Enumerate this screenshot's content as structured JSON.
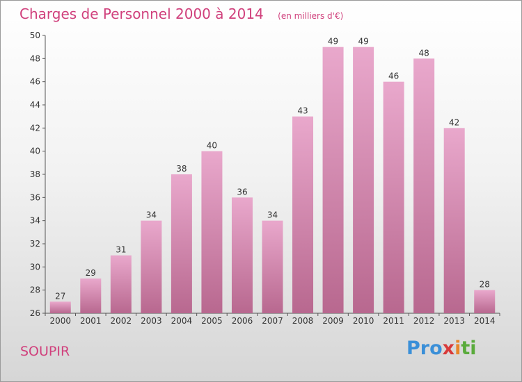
{
  "header": {
    "title": "Charges de Personnel 2000 à 2014",
    "subtitle": "(en milliers d'€)"
  },
  "footer": {
    "commune": "SOUPIR",
    "logo_text": "Proxiti"
  },
  "colors": {
    "accent": "#d0407c",
    "bar_top": "#e9a8cc",
    "bar_bottom": "#b8688f"
  },
  "chart_data": {
    "type": "bar",
    "title": "Charges de Personnel 2000 à 2014",
    "subtitle": "(en milliers d'€)",
    "xlabel": "",
    "ylabel": "",
    "categories": [
      "2000",
      "2001",
      "2002",
      "2003",
      "2004",
      "2005",
      "2006",
      "2007",
      "2008",
      "2009",
      "2010",
      "2011",
      "2012",
      "2013",
      "2014"
    ],
    "values": [
      27,
      29,
      31,
      34,
      38,
      40,
      36,
      34,
      43,
      49,
      49,
      46,
      48,
      42,
      28
    ],
    "ylim": [
      26,
      50
    ],
    "yticks": [
      26,
      28,
      30,
      32,
      34,
      36,
      38,
      40,
      42,
      44,
      46,
      48,
      50
    ],
    "grid": false,
    "legend": "none",
    "data_labels": true
  }
}
